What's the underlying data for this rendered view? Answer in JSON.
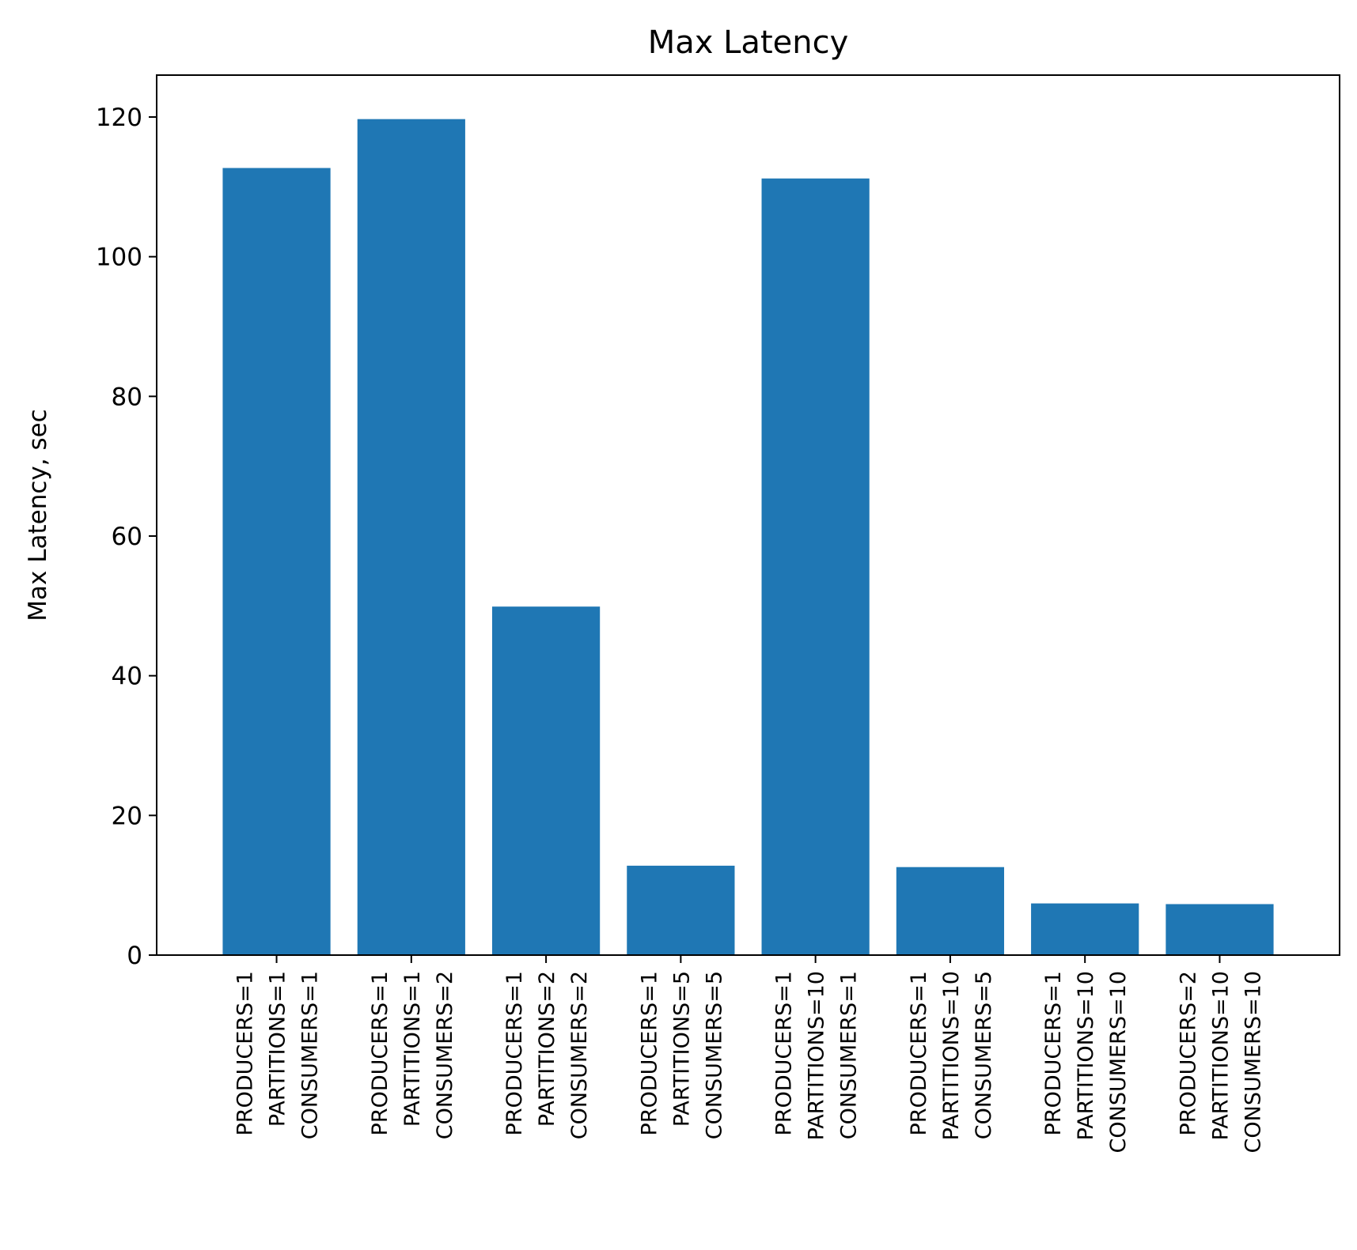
{
  "chart_data": {
    "type": "bar",
    "title": "Max Latency",
    "xlabel": "",
    "ylabel": "Max Latency, sec",
    "ylim": [
      0,
      126
    ],
    "yticks": [
      0,
      20,
      40,
      60,
      80,
      100,
      120
    ],
    "grid": false,
    "legend": "none",
    "bar_color": "#1f77b4",
    "categories": [
      [
        "PRODUCERS=1",
        "PARTITIONS=1",
        "CONSUMERS=1"
      ],
      [
        "PRODUCERS=1",
        "PARTITIONS=1",
        "CONSUMERS=2"
      ],
      [
        "PRODUCERS=1",
        "PARTITIONS=2",
        "CONSUMERS=2"
      ],
      [
        "PRODUCERS=1",
        "PARTITIONS=5",
        "CONSUMERS=5"
      ],
      [
        "PRODUCERS=1",
        "PARTITIONS=10",
        "CONSUMERS=1"
      ],
      [
        "PRODUCERS=1",
        "PARTITIONS=10",
        "CONSUMERS=5"
      ],
      [
        "PRODUCERS=1",
        "PARTITIONS=10",
        "CONSUMERS=10"
      ],
      [
        "PRODUCERS=2",
        "PARTITIONS=10",
        "CONSUMERS=10"
      ]
    ],
    "values": [
      112.7,
      119.7,
      49.9,
      12.8,
      111.2,
      12.6,
      7.4,
      7.3
    ]
  }
}
